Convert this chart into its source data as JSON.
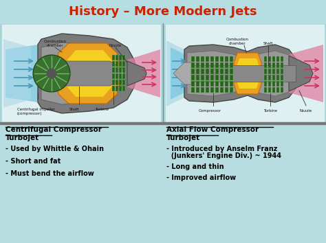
{
  "title": "History – More Modern Jets",
  "title_color": "#cc2200",
  "bg_color": "#a8d4d8",
  "left_heading_line1": "Centrifugal Compressor",
  "left_heading_line2": "Turbojet",
  "left_bullets": [
    "- Used by Whittle & Ohain",
    "- Short and fat",
    "- Must bend the airflow"
  ],
  "right_heading_line1": "Axial Flow Compressor",
  "right_heading_line2": "Turbojet",
  "right_bullets": [
    "- Introduced by Anselm Franz",
    "  (Junkers' Engine Div.) ~ 1944",
    "- Long and thin",
    "- Improved airflow"
  ],
  "text_color": "#000000"
}
